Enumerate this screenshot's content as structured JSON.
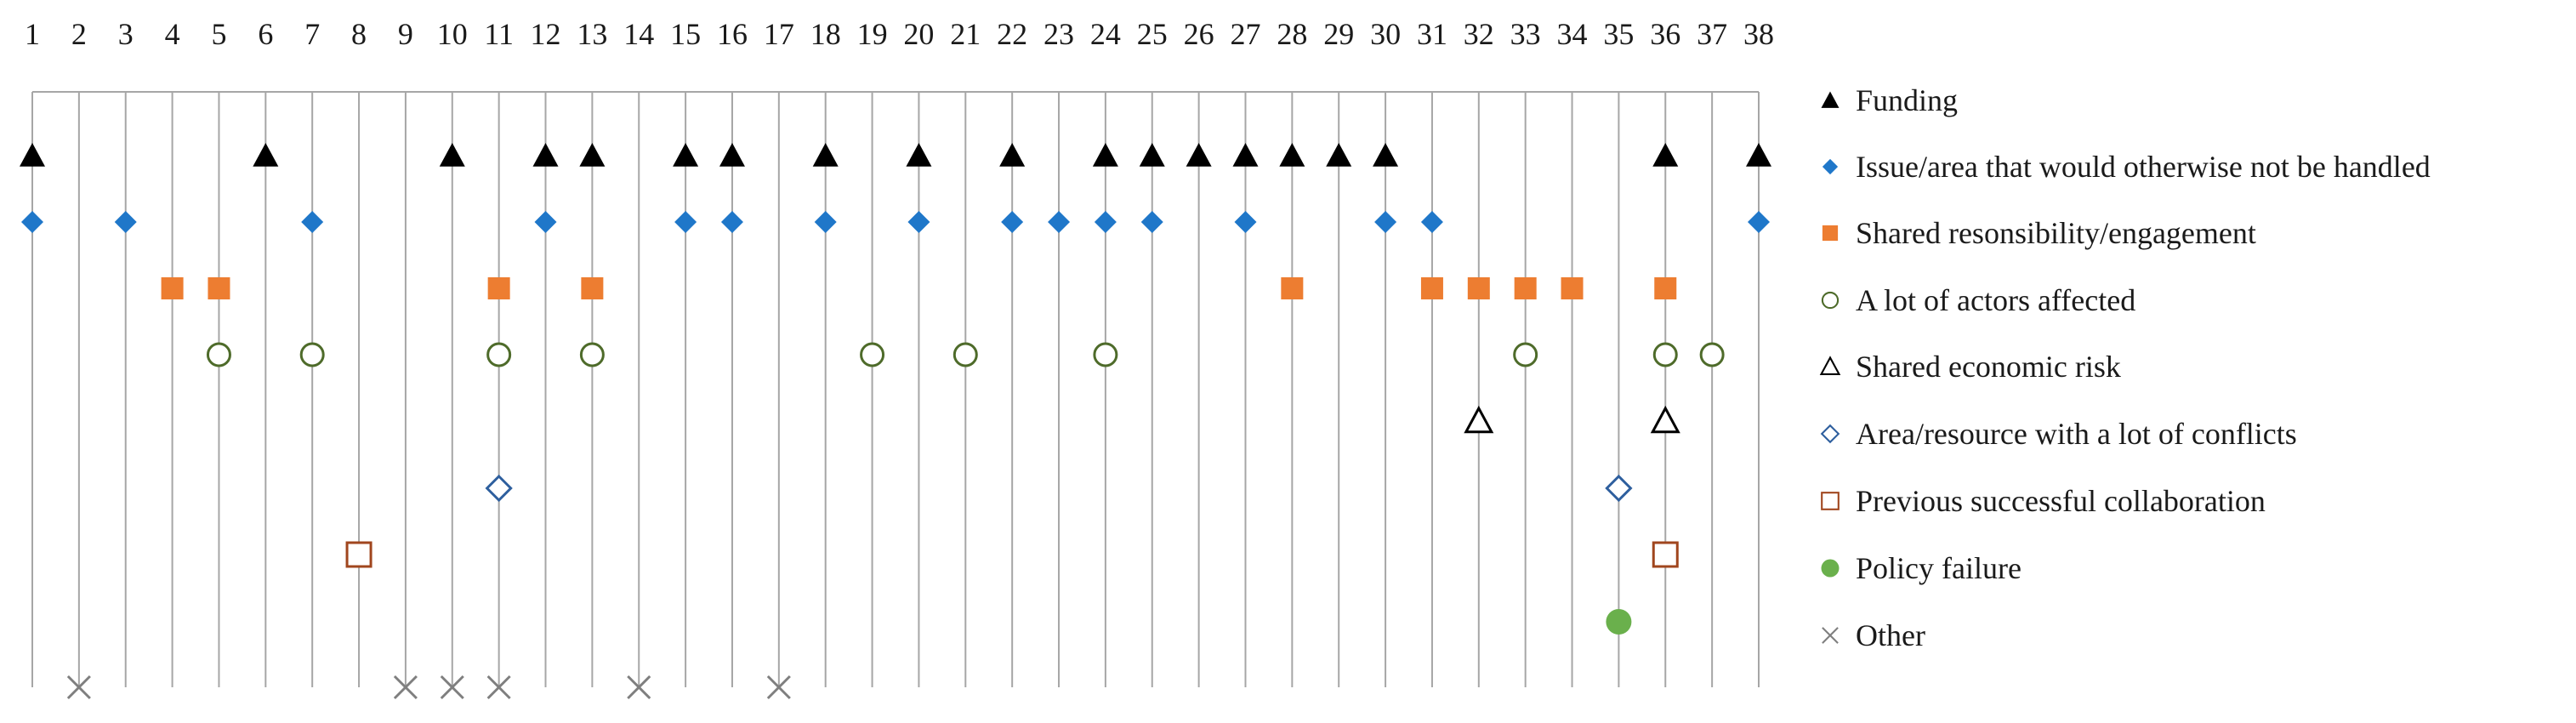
{
  "chart_data": {
    "type": "scatter",
    "title": "",
    "xlabel": "",
    "ylabel": "",
    "x": [
      1,
      2,
      3,
      4,
      5,
      6,
      7,
      8,
      9,
      10,
      11,
      12,
      13,
      14,
      15,
      16,
      17,
      18,
      19,
      20,
      21,
      22,
      23,
      24,
      25,
      26,
      27,
      28,
      29,
      30,
      31,
      32,
      33,
      34,
      35,
      36,
      37,
      38
    ],
    "legend_position": "right",
    "series": [
      {
        "name": "Funding",
        "marker": "triangle-filled",
        "color": "#000000",
        "x": [
          1,
          6,
          10,
          12,
          13,
          15,
          16,
          18,
          20,
          22,
          24,
          25,
          26,
          27,
          28,
          29,
          30,
          36,
          38
        ]
      },
      {
        "name": "Issue/area that would otherwise not be handled",
        "marker": "diamond-filled",
        "color": "#1f77c9",
        "x": [
          1,
          3,
          7,
          12,
          15,
          16,
          18,
          20,
          22,
          23,
          24,
          25,
          27,
          30,
          31,
          38
        ]
      },
      {
        "name": "Shared resonsibility/engagement",
        "marker": "square-filled",
        "color": "#ed7d31",
        "x": [
          4,
          5,
          11,
          13,
          28,
          31,
          32,
          33,
          34,
          36
        ]
      },
      {
        "name": "A lot of actors affected",
        "marker": "circle-open",
        "color": "#4e6b2a",
        "x": [
          5,
          7,
          11,
          13,
          19,
          21,
          24,
          33,
          36,
          37
        ]
      },
      {
        "name": "Shared economic risk",
        "marker": "triangle-open",
        "color": "#000000",
        "x": [
          32,
          36
        ]
      },
      {
        "name": "Area/resource with a lot of conflicts",
        "marker": "diamond-open",
        "color": "#2e5f9e",
        "x": [
          11,
          35
        ]
      },
      {
        "name": "Previous successful collaboration",
        "marker": "square-open",
        "color": "#a0461e",
        "x": [
          8,
          36
        ]
      },
      {
        "name": "Policy failure",
        "marker": "circle-filled",
        "color": "#6ab04c",
        "x": [
          35
        ]
      },
      {
        "name": "Other",
        "marker": "x",
        "color": "#7f7f7f",
        "x": [
          2,
          9,
          10,
          11,
          14,
          17
        ]
      }
    ]
  }
}
